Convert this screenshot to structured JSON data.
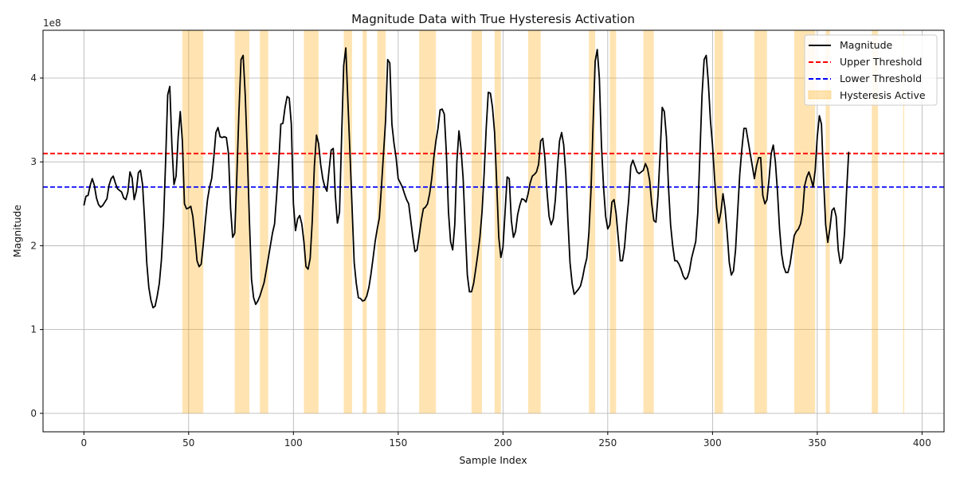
{
  "chart_data": {
    "type": "line",
    "title": "Magnitude Data with True Hysteresis Activation",
    "xlabel": "Sample Index",
    "ylabel": "Magnitude",
    "y_offset_text": "1e8",
    "xlim": [
      -19.5,
      410.5
    ],
    "ylim": [
      -22000000.0,
      457000000.0
    ],
    "x_ticks": [
      0,
      50,
      100,
      150,
      200,
      250,
      300,
      350,
      400
    ],
    "y_ticks": [
      0,
      100000000.0,
      200000000.0,
      300000000.0,
      400000000.0
    ],
    "y_tick_labels": [
      "0",
      "1",
      "2",
      "3",
      "4"
    ],
    "grid": true,
    "legend_position": "top-right",
    "colors": {
      "magnitude": "#000000",
      "upper_threshold": "#ff0000",
      "lower_threshold": "#0000ff",
      "hysteresis": "#ffa500"
    },
    "series": [
      {
        "name": "Magnitude",
        "style": "solid",
        "x_start": 0,
        "values": [
          248000000.0,
          259000000.0,
          260000000.0,
          272000000.0,
          280000000.0,
          272000000.0,
          257000000.0,
          249000000.0,
          246000000.0,
          248000000.0,
          252000000.0,
          256000000.0,
          272000000.0,
          280000000.0,
          283000000.0,
          275000000.0,
          268000000.0,
          266000000.0,
          264000000.0,
          257000000.0,
          255000000.0,
          264000000.0,
          288000000.0,
          281000000.0,
          255000000.0,
          265000000.0,
          287000000.0,
          290000000.0,
          273000000.0,
          230000000.0,
          180000000.0,
          150000000.0,
          135000000.0,
          126000000.0,
          128000000.0,
          140000000.0,
          155000000.0,
          183000000.0,
          228000000.0,
          300000000.0,
          380000000.0,
          390000000.0,
          320000000.0,
          273000000.0,
          283000000.0,
          330000000.0,
          360000000.0,
          325000000.0,
          250000000.0,
          244000000.0,
          245000000.0,
          247000000.0,
          235000000.0,
          210000000.0,
          182000000.0,
          175000000.0,
          178000000.0,
          202000000.0,
          230000000.0,
          255000000.0,
          270000000.0,
          280000000.0,
          305000000.0,
          335000000.0,
          341000000.0,
          330000000.0,
          329000000.0,
          330000000.0,
          329000000.0,
          310000000.0,
          245000000.0,
          210000000.0,
          215000000.0,
          283000000.0,
          360000000.0,
          422000000.0,
          427000000.0,
          380000000.0,
          310000000.0,
          230000000.0,
          160000000.0,
          138000000.0,
          130000000.0,
          134000000.0,
          140000000.0,
          148000000.0,
          156000000.0,
          170000000.0,
          185000000.0,
          200000000.0,
          215000000.0,
          226000000.0,
          260000000.0,
          300000000.0,
          345000000.0,
          346000000.0,
          365000000.0,
          378000000.0,
          376000000.0,
          345000000.0,
          250000000.0,
          218000000.0,
          232000000.0,
          236000000.0,
          226000000.0,
          205000000.0,
          175000000.0,
          172000000.0,
          185000000.0,
          230000000.0,
          295000000.0,
          332000000.0,
          322000000.0,
          297000000.0,
          280000000.0,
          270000000.0,
          265000000.0,
          290000000.0,
          314000000.0,
          316000000.0,
          260000000.0,
          227000000.0,
          240000000.0,
          330000000.0,
          415000000.0,
          436000000.0,
          372000000.0,
          310000000.0,
          245000000.0,
          180000000.0,
          155000000.0,
          138000000.0,
          137000000.0,
          134000000.0,
          135000000.0,
          140000000.0,
          150000000.0,
          166000000.0,
          185000000.0,
          205000000.0,
          220000000.0,
          233000000.0,
          270000000.0,
          310000000.0,
          350000000.0,
          422000000.0,
          418000000.0,
          345000000.0,
          322000000.0,
          305000000.0,
          280000000.0,
          275000000.0,
          270000000.0,
          262000000.0,
          255000000.0,
          250000000.0,
          230000000.0,
          210000000.0,
          193000000.0,
          195000000.0,
          212000000.0,
          230000000.0,
          244000000.0,
          246000000.0,
          250000000.0,
          262000000.0,
          280000000.0,
          305000000.0,
          325000000.0,
          340000000.0,
          362000000.0,
          363000000.0,
          357000000.0,
          310000000.0,
          240000000.0,
          205000000.0,
          195000000.0,
          225000000.0,
          300000000.0,
          337000000.0,
          315000000.0,
          280000000.0,
          220000000.0,
          165000000.0,
          145000000.0,
          145000000.0,
          155000000.0,
          172000000.0,
          190000000.0,
          210000000.0,
          240000000.0,
          285000000.0,
          340000000.0,
          383000000.0,
          382000000.0,
          365000000.0,
          335000000.0,
          275000000.0,
          210000000.0,
          186000000.0,
          198000000.0,
          240000000.0,
          282000000.0,
          280000000.0,
          230000000.0,
          210000000.0,
          217000000.0,
          237000000.0,
          248000000.0,
          256000000.0,
          255000000.0,
          252000000.0,
          262000000.0,
          275000000.0,
          283000000.0,
          285000000.0,
          288000000.0,
          297000000.0,
          325000000.0,
          328000000.0,
          305000000.0,
          265000000.0,
          235000000.0,
          225000000.0,
          232000000.0,
          255000000.0,
          293000000.0,
          325000000.0,
          335000000.0,
          320000000.0,
          285000000.0,
          230000000.0,
          180000000.0,
          155000000.0,
          142000000.0,
          145000000.0,
          148000000.0,
          152000000.0,
          162000000.0,
          175000000.0,
          185000000.0,
          215000000.0,
          265000000.0,
          345000000.0,
          420000000.0,
          434000000.0,
          400000000.0,
          320000000.0,
          270000000.0,
          235000000.0,
          220000000.0,
          225000000.0,
          252000000.0,
          255000000.0,
          238000000.0,
          210000000.0,
          182000000.0,
          182000000.0,
          198000000.0,
          228000000.0,
          255000000.0,
          295000000.0,
          302000000.0,
          295000000.0,
          288000000.0,
          286000000.0,
          288000000.0,
          290000000.0,
          298000000.0,
          292000000.0,
          278000000.0,
          250000000.0,
          230000000.0,
          228000000.0,
          260000000.0,
          310000000.0,
          365000000.0,
          360000000.0,
          330000000.0,
          270000000.0,
          225000000.0,
          200000000.0,
          182000000.0,
          182000000.0,
          178000000.0,
          172000000.0,
          164000000.0,
          160000000.0,
          162000000.0,
          170000000.0,
          185000000.0,
          195000000.0,
          205000000.0,
          240000000.0,
          310000000.0,
          380000000.0,
          422000000.0,
          427000000.0,
          395000000.0,
          350000000.0,
          320000000.0,
          280000000.0,
          245000000.0,
          227000000.0,
          240000000.0,
          262000000.0,
          244000000.0,
          215000000.0,
          180000000.0,
          165000000.0,
          170000000.0,
          195000000.0,
          240000000.0,
          285000000.0,
          315000000.0,
          340000000.0,
          340000000.0,
          325000000.0,
          310000000.0,
          295000000.0,
          280000000.0,
          295000000.0,
          305000000.0,
          305000000.0,
          260000000.0,
          250000000.0,
          255000000.0,
          280000000.0,
          310000000.0,
          320000000.0,
          300000000.0,
          265000000.0,
          220000000.0,
          190000000.0,
          175000000.0,
          168000000.0,
          168000000.0,
          178000000.0,
          195000000.0,
          212000000.0,
          217000000.0,
          220000000.0,
          226000000.0,
          240000000.0,
          272000000.0,
          282000000.0,
          288000000.0,
          280000000.0,
          270000000.0,
          290000000.0,
          330000000.0,
          355000000.0,
          345000000.0,
          280000000.0,
          225000000.0,
          204000000.0,
          220000000.0,
          242000000.0,
          245000000.0,
          235000000.0,
          195000000.0,
          179000000.0,
          185000000.0,
          215000000.0,
          265000000.0,
          312000000.0
        ]
      },
      {
        "name": "Upper Threshold",
        "style": "dashed",
        "value": 310000000.0
      },
      {
        "name": "Lower Threshold",
        "style": "dashed",
        "value": 270000000.0
      },
      {
        "name": "Hysteresis Active",
        "style": "filled-span",
        "spans": [
          [
            47,
            57
          ],
          [
            72,
            79
          ],
          [
            84,
            88
          ],
          [
            105,
            112
          ],
          [
            124,
            128
          ],
          [
            133,
            135
          ],
          [
            140,
            144
          ],
          [
            160,
            168
          ],
          [
            185,
            190
          ],
          [
            196,
            199
          ],
          [
            212,
            218
          ],
          [
            241,
            244
          ],
          [
            251,
            254
          ],
          [
            267,
            272
          ],
          [
            301,
            305
          ],
          [
            320,
            326
          ],
          [
            339,
            349
          ],
          [
            354,
            356
          ],
          [
            376,
            379
          ],
          [
            391,
            391.5
          ]
        ]
      }
    ],
    "legend": [
      "Magnitude",
      "Upper Threshold",
      "Lower Threshold",
      "Hysteresis Active"
    ]
  }
}
